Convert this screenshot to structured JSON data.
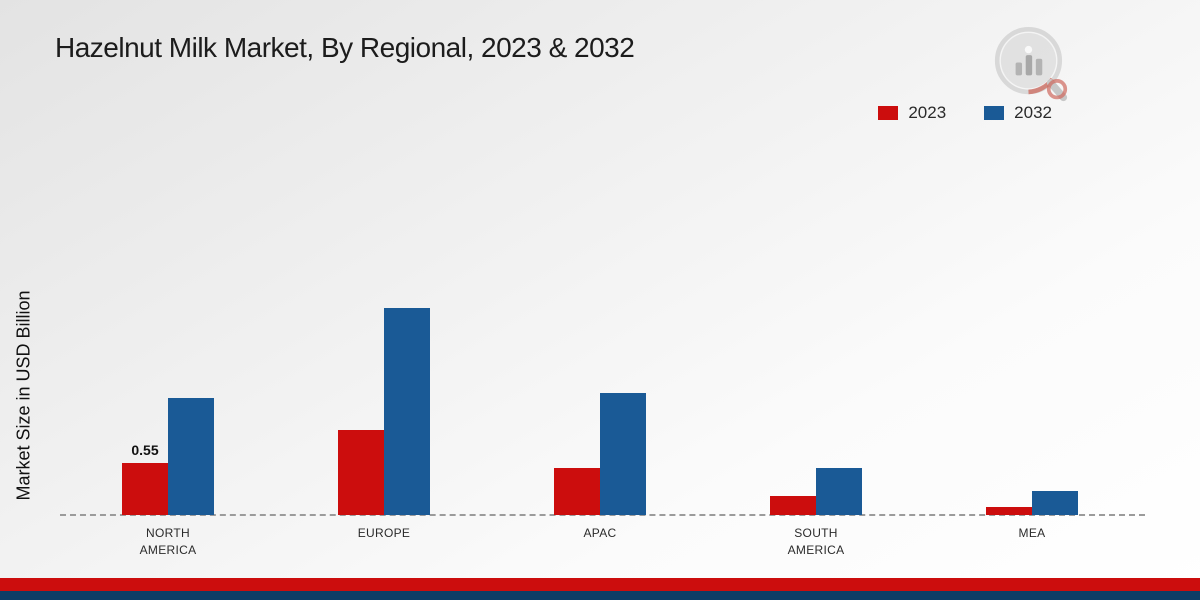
{
  "title": "Hazelnut Milk Market, By Regional, 2023 & 2032",
  "ylabel": "Market Size in USD Billion",
  "footer": {
    "red_strip_color": "#cc0d0d",
    "navy_strip_color": "#0e3d66"
  },
  "logo": {
    "name": "market-research-watermark-logo",
    "gray": "#bcbcbc",
    "red": "#c0392b"
  },
  "chart_data": {
    "type": "bar",
    "title": "Hazelnut Milk Market, By Regional, 2023 & 2032",
    "xlabel": "",
    "ylabel": "Market Size in USD Billion",
    "categories": [
      "NORTH AMERICA",
      "EUROPE",
      "APAC",
      "SOUTH AMERICA",
      "MEA"
    ],
    "series": [
      {
        "name": "2023",
        "color": "#cc0d0d",
        "values": [
          0.55,
          0.9,
          0.5,
          0.2,
          0.08
        ]
      },
      {
        "name": "2032",
        "color": "#1a5a96",
        "values": [
          1.24,
          2.2,
          1.3,
          0.5,
          0.25
        ]
      }
    ],
    "bar_labels": [
      {
        "series": "2023",
        "category_index": 0,
        "text": "0.55"
      }
    ],
    "ylim": [
      0,
      2.5
    ],
    "grid": false,
    "legend_position": "top-right",
    "baseline_style": "dashed"
  }
}
